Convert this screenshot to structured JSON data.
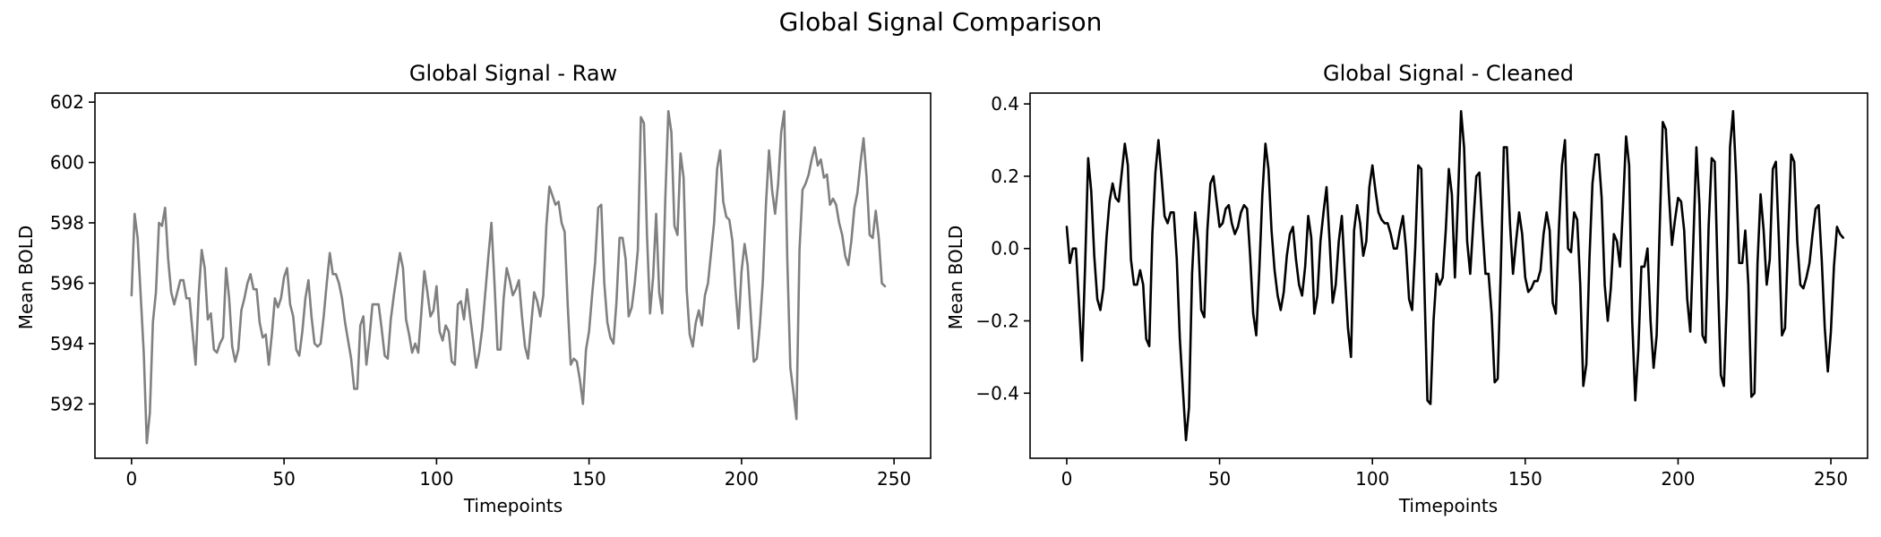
{
  "figure": {
    "title": "Global Signal Comparison"
  },
  "chart_data": [
    {
      "type": "line",
      "title": "Global Signal - Raw",
      "xlabel": "Timepoints",
      "ylabel": "Mean BOLD",
      "xlim": [
        -12,
        262
      ],
      "ylim": [
        590.2,
        602.3
      ],
      "xticks": [
        0,
        50,
        100,
        150,
        200,
        250
      ],
      "yticks": [
        592,
        594,
        596,
        598,
        600,
        602
      ],
      "color": "#808080",
      "series": [
        {
          "x_start": 0,
          "values": [
            595.6,
            598.3,
            597.5,
            595.6,
            593.7,
            590.7,
            591.7,
            594.7,
            595.7,
            598.0,
            597.9,
            598.5,
            596.8,
            595.7,
            595.3,
            595.7,
            596.1,
            596.1,
            595.5,
            595.5,
            594.4,
            593.3,
            595.6,
            597.1,
            596.5,
            594.8,
            595.0,
            593.8,
            593.7,
            594.0,
            594.2,
            596.5,
            595.5,
            593.9,
            593.4,
            593.8,
            595.1,
            595.5,
            596.0,
            596.3,
            595.8,
            595.8,
            594.7,
            594.2,
            594.3,
            593.3,
            594.3,
            595.5,
            595.2,
            595.5,
            596.2,
            596.5,
            595.3,
            594.9,
            593.8,
            593.6,
            594.4,
            595.5,
            596.1,
            594.9,
            594.0,
            593.9,
            594.0,
            594.9,
            596.0,
            597.0,
            596.3,
            596.3,
            596.0,
            595.5,
            594.7,
            594.1,
            593.5,
            592.5,
            592.5,
            594.6,
            594.9,
            593.3,
            594.2,
            595.3,
            595.3,
            595.3,
            594.5,
            593.6,
            593.5,
            594.8,
            595.6,
            596.3,
            597.0,
            596.5,
            594.8,
            594.3,
            593.7,
            594.0,
            593.7,
            595.0,
            596.4,
            595.7,
            594.9,
            595.1,
            595.9,
            594.4,
            594.1,
            594.6,
            594.4,
            593.4,
            593.3,
            595.3,
            595.4,
            594.8,
            595.8,
            594.9,
            594.1,
            593.2,
            593.7,
            594.5,
            595.7,
            596.9,
            598.0,
            596.0,
            593.8,
            593.8,
            595.5,
            596.5,
            596.1,
            595.6,
            595.8,
            596.1,
            594.9,
            593.9,
            593.5,
            594.6,
            595.7,
            595.4,
            594.9,
            595.6,
            597.9,
            599.2,
            598.9,
            598.6,
            598.7,
            598.0,
            597.7,
            595.3,
            593.3,
            593.5,
            593.4,
            592.8,
            592.0,
            593.8,
            594.4,
            595.6,
            596.7,
            598.5,
            598.6,
            596.0,
            594.7,
            594.2,
            594.0,
            595.4,
            597.5,
            597.5,
            596.8,
            594.9,
            595.2,
            596.0,
            597.1,
            601.5,
            601.3,
            597.6,
            595.0,
            596.2,
            598.3,
            595.7,
            595.0,
            598.8,
            601.7,
            601.0,
            597.9,
            597.6,
            600.3,
            599.5,
            595.8,
            594.3,
            593.9,
            594.7,
            595.1,
            594.6,
            595.6,
            596.0,
            597.0,
            598.0,
            599.8,
            600.4,
            598.7,
            598.2,
            598.1,
            597.4,
            595.8,
            594.5,
            596.4,
            597.3,
            596.6,
            595.0,
            593.4,
            593.5,
            594.6,
            596.1,
            598.6,
            600.4,
            599.1,
            598.3,
            599.3,
            601.0,
            601.7,
            596.8,
            593.2,
            592.4,
            591.5,
            597.1,
            599.1,
            599.3,
            599.6,
            600.1,
            600.5,
            599.9,
            600.1,
            599.5,
            599.6,
            598.6,
            598.8,
            598.6,
            598.0,
            597.6,
            596.9,
            596.6,
            597.4,
            598.5,
            599.0,
            600.0,
            600.8,
            599.5,
            597.6,
            597.5,
            598.4,
            597.5,
            596.0,
            595.9
          ]
        }
      ]
    },
    {
      "type": "line",
      "title": "Global Signal - Cleaned",
      "xlabel": "Timepoints",
      "ylabel": "Mean BOLD",
      "xlim": [
        -12,
        262
      ],
      "ylim": [
        -0.58,
        0.43
      ],
      "xticks": [
        0,
        50,
        100,
        150,
        200,
        250
      ],
      "yticks": [
        -0.4,
        -0.2,
        0.0,
        0.2,
        0.4
      ],
      "color": "#000000",
      "series": [
        {
          "x_start": 0,
          "values": [
            0.06,
            -0.04,
            0.0,
            0.0,
            -0.15,
            -0.31,
            -0.05,
            0.25,
            0.16,
            -0.02,
            -0.14,
            -0.17,
            -0.11,
            0.03,
            0.13,
            0.18,
            0.14,
            0.13,
            0.21,
            0.29,
            0.23,
            -0.03,
            -0.1,
            -0.1,
            -0.06,
            -0.1,
            -0.25,
            -0.27,
            0.04,
            0.21,
            0.3,
            0.2,
            0.09,
            0.07,
            0.1,
            0.1,
            -0.03,
            -0.25,
            -0.39,
            -0.53,
            -0.44,
            -0.07,
            0.1,
            0.02,
            -0.17,
            -0.19,
            0.05,
            0.18,
            0.2,
            0.13,
            0.06,
            0.07,
            0.11,
            0.12,
            0.07,
            0.04,
            0.06,
            0.1,
            0.12,
            0.11,
            -0.02,
            -0.18,
            -0.24,
            -0.06,
            0.15,
            0.29,
            0.22,
            0.05,
            -0.06,
            -0.13,
            -0.17,
            -0.12,
            -0.02,
            0.04,
            0.06,
            -0.03,
            -0.1,
            -0.13,
            -0.05,
            0.09,
            0.03,
            -0.18,
            -0.13,
            0.02,
            0.1,
            0.17,
            0.02,
            -0.15,
            -0.1,
            0.02,
            0.09,
            -0.07,
            -0.22,
            -0.3,
            0.05,
            0.12,
            0.07,
            -0.02,
            0.02,
            0.17,
            0.23,
            0.16,
            0.1,
            0.08,
            0.07,
            0.07,
            0.04,
            0.0,
            0.0,
            0.05,
            0.09,
            0.0,
            -0.14,
            -0.17,
            0.0,
            0.23,
            0.22,
            -0.1,
            -0.42,
            -0.43,
            -0.2,
            -0.07,
            -0.1,
            -0.08,
            0.05,
            0.22,
            0.15,
            -0.08,
            0.14,
            0.38,
            0.28,
            0.02,
            -0.07,
            0.07,
            0.2,
            0.21,
            0.06,
            -0.07,
            -0.07,
            -0.18,
            -0.37,
            -0.36,
            -0.06,
            0.28,
            0.28,
            0.07,
            -0.07,
            0.02,
            0.1,
            0.04,
            -0.08,
            -0.12,
            -0.11,
            -0.09,
            -0.09,
            -0.06,
            0.04,
            0.1,
            0.05,
            -0.15,
            -0.18,
            0.05,
            0.23,
            0.3,
            0.0,
            -0.01,
            0.1,
            0.08,
            -0.1,
            -0.38,
            -0.32,
            -0.03,
            0.18,
            0.26,
            0.26,
            0.14,
            -0.1,
            -0.2,
            -0.11,
            0.04,
            0.02,
            -0.05,
            0.12,
            0.31,
            0.23,
            -0.2,
            -0.42,
            -0.28,
            -0.05,
            -0.05,
            0.0,
            -0.2,
            -0.33,
            -0.24,
            0.06,
            0.35,
            0.33,
            0.15,
            0.01,
            0.08,
            0.14,
            0.13,
            0.05,
            -0.14,
            -0.23,
            0.02,
            0.28,
            0.12,
            -0.24,
            -0.26,
            0.06,
            0.25,
            0.24,
            -0.08,
            -0.35,
            -0.38,
            -0.13,
            0.28,
            0.38,
            0.2,
            -0.04,
            -0.04,
            0.05,
            -0.1,
            -0.41,
            -0.4,
            -0.04,
            0.15,
            0.05,
            -0.1,
            -0.03,
            0.22,
            0.24,
            0.02,
            -0.24,
            -0.22,
            0.02,
            0.26,
            0.24,
            0.02,
            -0.1,
            -0.11,
            -0.08,
            -0.04,
            0.04,
            0.11,
            0.12,
            -0.03,
            -0.22,
            -0.34,
            -0.23,
            -0.05,
            0.06,
            0.04,
            0.03
          ]
        }
      ]
    }
  ]
}
